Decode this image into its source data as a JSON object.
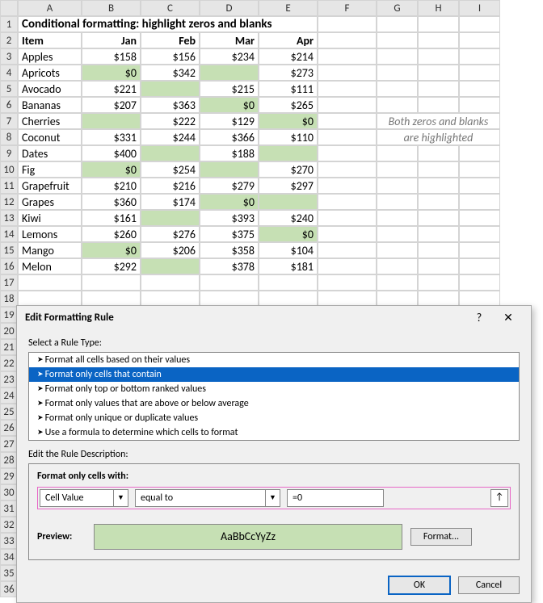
{
  "colors": {
    "highlight": "#c6e0b4",
    "dialog_bg": "#f0f0f0",
    "selection": "#0a64c4",
    "pink_outline": "#e768c7"
  },
  "columns": [
    "A",
    "B",
    "C",
    "D",
    "E",
    "F",
    "G",
    "H",
    "I"
  ],
  "row_count": 36,
  "title": "Conditional formatting: highlight zeros and blanks",
  "headers": {
    "item": "Item",
    "months": [
      "Jan",
      "Feb",
      "Mar",
      "Apr"
    ]
  },
  "note_line1": "Both zeros and blanks",
  "note_line2": "are highlighted",
  "data_rows": [
    {
      "name": "Apples",
      "v": [
        "$158",
        "$156",
        "$234",
        "$214"
      ],
      "hl": [
        false,
        false,
        false,
        false
      ]
    },
    {
      "name": "Apricots",
      "v": [
        "$0",
        "$342",
        "",
        "$273"
      ],
      "hl": [
        true,
        false,
        true,
        false
      ]
    },
    {
      "name": "Avocado",
      "v": [
        "$221",
        "",
        "$215",
        "$111"
      ],
      "hl": [
        false,
        true,
        false,
        false
      ]
    },
    {
      "name": "Bananas",
      "v": [
        "$207",
        "$363",
        "$0",
        "$265"
      ],
      "hl": [
        false,
        false,
        true,
        false
      ]
    },
    {
      "name": "Cherries",
      "v": [
        "",
        "$222",
        "$129",
        "$0"
      ],
      "hl": [
        true,
        false,
        false,
        true
      ]
    },
    {
      "name": "Coconut",
      "v": [
        "$331",
        "$244",
        "$366",
        "$110"
      ],
      "hl": [
        false,
        false,
        false,
        false
      ]
    },
    {
      "name": "Dates",
      "v": [
        "$400",
        "",
        "$188",
        ""
      ],
      "hl": [
        false,
        true,
        false,
        true
      ]
    },
    {
      "name": "Fig",
      "v": [
        "$0",
        "$254",
        "",
        "$270"
      ],
      "hl": [
        true,
        false,
        true,
        false
      ]
    },
    {
      "name": "Grapefruit",
      "v": [
        "$210",
        "$216",
        "$279",
        "$297"
      ],
      "hl": [
        false,
        false,
        false,
        false
      ]
    },
    {
      "name": "Grapes",
      "v": [
        "$360",
        "$174",
        "$0",
        ""
      ],
      "hl": [
        false,
        false,
        true,
        true
      ]
    },
    {
      "name": "Kiwi",
      "v": [
        "$161",
        "",
        "$393",
        "$240"
      ],
      "hl": [
        false,
        true,
        false,
        false
      ]
    },
    {
      "name": "Lemons",
      "v": [
        "$260",
        "$276",
        "$375",
        "$0"
      ],
      "hl": [
        false,
        false,
        false,
        true
      ]
    },
    {
      "name": "Mango",
      "v": [
        "$0",
        "$206",
        "$358",
        "$104"
      ],
      "hl": [
        true,
        false,
        false,
        false
      ]
    },
    {
      "name": "Melon",
      "v": [
        "$292",
        "",
        "$378",
        "$181"
      ],
      "hl": [
        false,
        true,
        false,
        false
      ]
    }
  ],
  "dialog": {
    "title": "Edit Formatting Rule",
    "help": "?",
    "close": "✕",
    "select_label": "Select a Rule Type:",
    "rule_types": [
      "Format all cells based on their values",
      "Format only cells that contain",
      "Format only top or bottom ranked values",
      "Format only values that are above or below average",
      "Format only unique or duplicate values",
      "Use a formula to determine which cells to format"
    ],
    "selected_rule_index": 1,
    "edit_label": "Edit the Rule Description:",
    "cells_with_label": "Format only cells with:",
    "combo1": "Cell Value",
    "combo2": "equal to",
    "formula": "=0",
    "preview_label": "Preview:",
    "preview_text": "AaBbCcYyZz",
    "format_btn": "Format...",
    "ok": "OK",
    "cancel": "Cancel",
    "ref_icon": "↑"
  }
}
